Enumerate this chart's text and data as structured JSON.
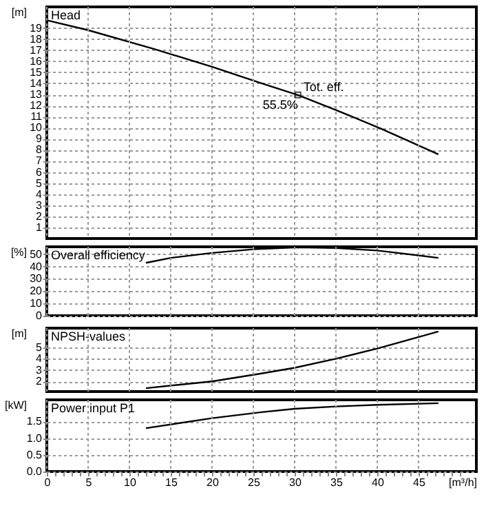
{
  "chart_data": [
    {
      "type": "line",
      "title": "Head",
      "ylabel": "[m]",
      "x": [
        0,
        5,
        13,
        20,
        26,
        30.4,
        35,
        40.5,
        47.4
      ],
      "series": [
        {
          "color": "#000000",
          "values": [
            19.7,
            18.8,
            17.1,
            15.5,
            14.0,
            12.95,
            11.6,
            9.9,
            7.6
          ]
        }
      ],
      "xlim": [
        0,
        52
      ],
      "xticks": [
        0,
        5,
        10,
        15,
        20,
        25,
        30,
        35,
        40,
        45
      ],
      "ylim": [
        0,
        20.9
      ],
      "yticks": [
        1,
        2,
        3,
        4,
        5,
        6,
        7,
        8,
        9,
        10,
        11,
        12,
        13,
        14,
        15,
        16,
        17,
        18,
        19
      ],
      "grid": true,
      "tick_labels": "y",
      "marker": "none",
      "line_style": "solid",
      "annotations": [
        {
          "text": "Tot. eff.",
          "x": 30.4,
          "y": 12.95
        },
        {
          "text": "55.5%",
          "x": 30.4,
          "y": 12.95
        }
      ]
    },
    {
      "type": "line",
      "title": "Overall efficiency",
      "ylabel": "[%]",
      "x": [
        12,
        15,
        20,
        25,
        30.4,
        35,
        40,
        45,
        47.4
      ],
      "series": [
        {
          "color": "#000000",
          "values": [
            43,
            47,
            51,
            54,
            55.5,
            55,
            53,
            49,
            47
          ]
        }
      ],
      "xlim": [
        0,
        52
      ],
      "xticks": [
        0,
        5,
        10,
        15,
        20,
        25,
        30,
        35,
        40,
        45
      ],
      "ylim": [
        0,
        56
      ],
      "yticks": [
        0,
        10,
        20,
        30,
        40,
        50
      ],
      "grid": true,
      "tick_labels": "y",
      "marker": "none",
      "line_style": "solid"
    },
    {
      "type": "line",
      "title": "NPSH-values",
      "ylabel": "[m]",
      "x": [
        12,
        20,
        26,
        30,
        35,
        40,
        47.4
      ],
      "series": [
        {
          "color": "#000000",
          "values": [
            1.4,
            2.0,
            2.7,
            3.2,
            4.0,
            4.9,
            6.4
          ]
        }
      ],
      "xlim": [
        0,
        52
      ],
      "xticks": [
        0,
        5,
        10,
        15,
        20,
        25,
        30,
        35,
        40,
        45
      ],
      "ylim": [
        1.1,
        6.7
      ],
      "yticks": [
        2,
        3,
        4,
        5
      ],
      "grid": true,
      "tick_labels": "y",
      "marker": "none",
      "line_style": "solid"
    },
    {
      "type": "line",
      "title": "Power input P1",
      "ylabel": "[kW]",
      "xlabel": "[m³/h]",
      "x": [
        12,
        20,
        26,
        30,
        35,
        40,
        47.4
      ],
      "series": [
        {
          "color": "#000000",
          "values": [
            1.3,
            1.6,
            1.78,
            1.88,
            1.95,
            2.0,
            2.05
          ]
        }
      ],
      "xlim": [
        0,
        52
      ],
      "xticks": [
        0,
        {
          "value": 1,
          "label": null
        },
        {
          "value": 2,
          "label": null
        },
        {
          "value": 3,
          "label": null
        },
        {
          "value": 4,
          "label": null
        },
        5,
        {
          "value": 6,
          "label": null
        },
        {
          "value": 7,
          "label": null
        },
        {
          "value": 8,
          "label": null
        },
        {
          "value": 9,
          "label": null
        },
        10,
        {
          "value": 11,
          "label": null
        },
        {
          "value": 12,
          "label": null
        },
        {
          "value": 13,
          "label": null
        },
        {
          "value": 14,
          "label": null
        },
        15,
        {
          "value": 16,
          "label": null
        },
        {
          "value": 17,
          "label": null
        },
        {
          "value": 18,
          "label": null
        },
        {
          "value": 19,
          "label": null
        },
        20,
        {
          "value": 21,
          "label": null
        },
        {
          "value": 22,
          "label": null
        },
        {
          "value": 23,
          "label": null
        },
        {
          "value": 24,
          "label": null
        },
        25,
        {
          "value": 26,
          "label": null
        },
        {
          "value": 27,
          "label": null
        },
        {
          "value": 28,
          "label": null
        },
        {
          "value": 29,
          "label": null
        },
        30,
        {
          "value": 31,
          "label": null
        },
        {
          "value": 32,
          "label": null
        },
        {
          "value": 33,
          "label": null
        },
        {
          "value": 34,
          "label": null
        },
        35,
        {
          "value": 36,
          "label": null
        },
        {
          "value": 37,
          "label": null
        },
        {
          "value": 38,
          "label": null
        },
        {
          "value": 39,
          "label": null
        },
        40,
        {
          "value": 41,
          "label": null
        },
        {
          "value": 42,
          "label": null
        },
        {
          "value": 43,
          "label": null
        },
        {
          "value": 44,
          "label": null
        },
        45,
        {
          "value": 46,
          "label": null
        },
        {
          "value": 47,
          "label": null
        },
        {
          "value": 48,
          "label": null
        },
        {
          "value": 49,
          "label": null
        },
        {
          "value": 50,
          "label": null
        }
      ],
      "ylim": [
        0,
        2.15
      ],
      "yticks": [
        {
          "value": 0,
          "label": "0.0"
        },
        0.5,
        {
          "value": 1,
          "label": "1.0"
        },
        1.5
      ],
      "grid": true,
      "marker": "none",
      "line_style": "solid"
    }
  ]
}
